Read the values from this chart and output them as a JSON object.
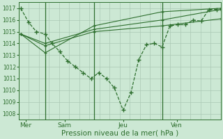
{
  "bg_color": "#cce8d4",
  "grid_color": "#aac8b4",
  "line_color": "#2d6e2d",
  "xlabel": "Pression niveau de la mer( hPa )",
  "xlabel_fontsize": 7.5,
  "yticks": [
    1008,
    1009,
    1010,
    1011,
    1012,
    1013,
    1014,
    1015,
    1016,
    1017
  ],
  "ylim": [
    1007.5,
    1017.5
  ],
  "day_labels": [
    "Mer",
    "Sam",
    "Jeu",
    "Ven"
  ],
  "day_positions": [
    0.5,
    4.5,
    10.5,
    16.0
  ],
  "vline_positions": [
    2.5,
    7.5,
    14.5
  ],
  "xlim": [
    -0.2,
    20.5
  ],
  "series1": {
    "x": [
      0.0,
      0.8,
      1.6,
      2.5,
      3.2,
      4.0,
      4.8,
      5.6,
      6.4,
      7.2,
      8.0,
      8.8,
      9.6,
      10.5,
      11.3,
      12.1,
      12.9,
      13.7,
      14.5,
      15.3,
      16.1,
      16.9,
      17.7,
      18.5,
      19.3,
      20.1
    ],
    "y": [
      1017.0,
      1015.8,
      1015.0,
      1014.8,
      1014.0,
      1013.3,
      1012.5,
      1012.0,
      1011.5,
      1011.0,
      1011.5,
      1011.0,
      1010.2,
      1008.3,
      1009.8,
      1012.6,
      1013.9,
      1014.0,
      1013.7,
      1015.5,
      1015.6,
      1015.6,
      1016.0,
      1015.9,
      1016.9,
      1016.9
    ]
  },
  "series2": {
    "x": [
      0.0,
      2.5,
      7.5,
      14.5,
      20.5
    ],
    "y": [
      1014.8,
      1014.0,
      1015.2,
      1016.0,
      1016.9
    ]
  },
  "series3": {
    "x": [
      0.0,
      2.5,
      7.5,
      14.5,
      20.5
    ],
    "y": [
      1014.8,
      1013.8,
      1015.0,
      1015.5,
      1016.1
    ]
  },
  "series4": {
    "x": [
      0.0,
      2.5,
      7.5,
      14.5,
      20.5
    ],
    "y": [
      1014.8,
      1013.2,
      1015.5,
      1016.7,
      1017.0
    ]
  }
}
